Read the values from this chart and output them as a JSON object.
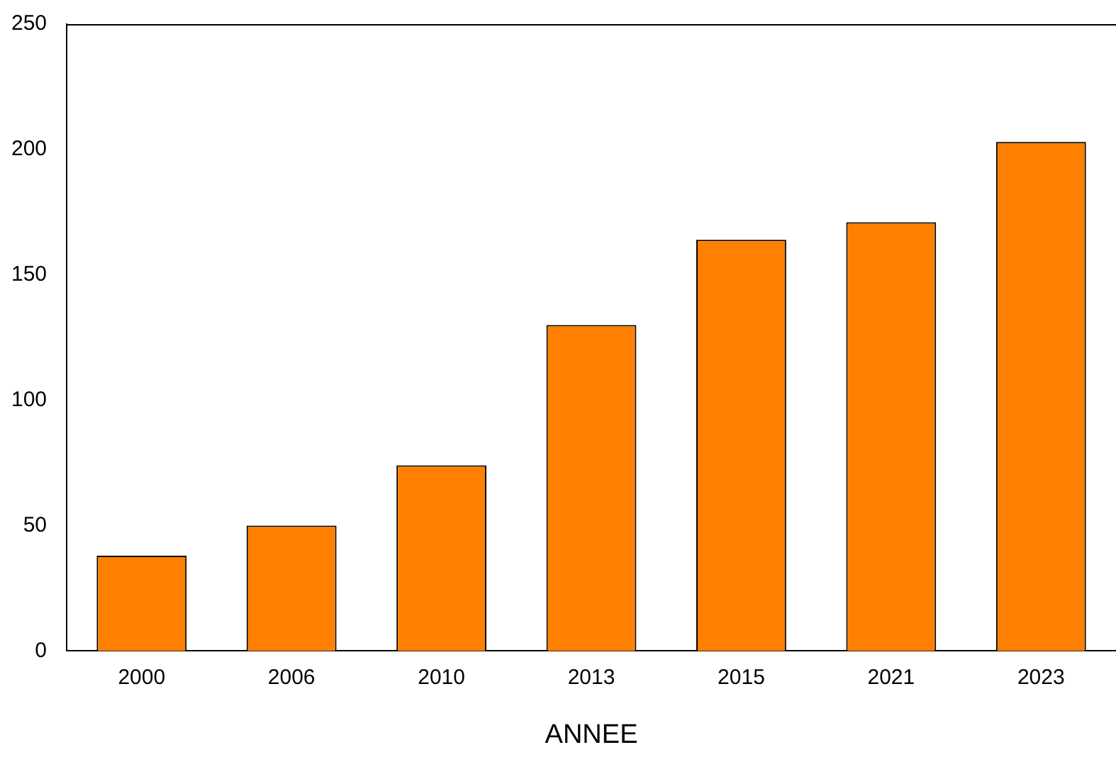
{
  "chart_data": {
    "type": "bar",
    "xlabel": "ANNEE",
    "categories": [
      "2000",
      "2006",
      "2010",
      "2013",
      "2015",
      "2021",
      "2023"
    ],
    "values": [
      38,
      50,
      74,
      130,
      164,
      171,
      203
    ],
    "color": "#ff8000",
    "ylim": [
      0,
      250
    ],
    "yticks": [
      0,
      50,
      100,
      150,
      200,
      250
    ],
    "grid": false,
    "legend": false
  }
}
